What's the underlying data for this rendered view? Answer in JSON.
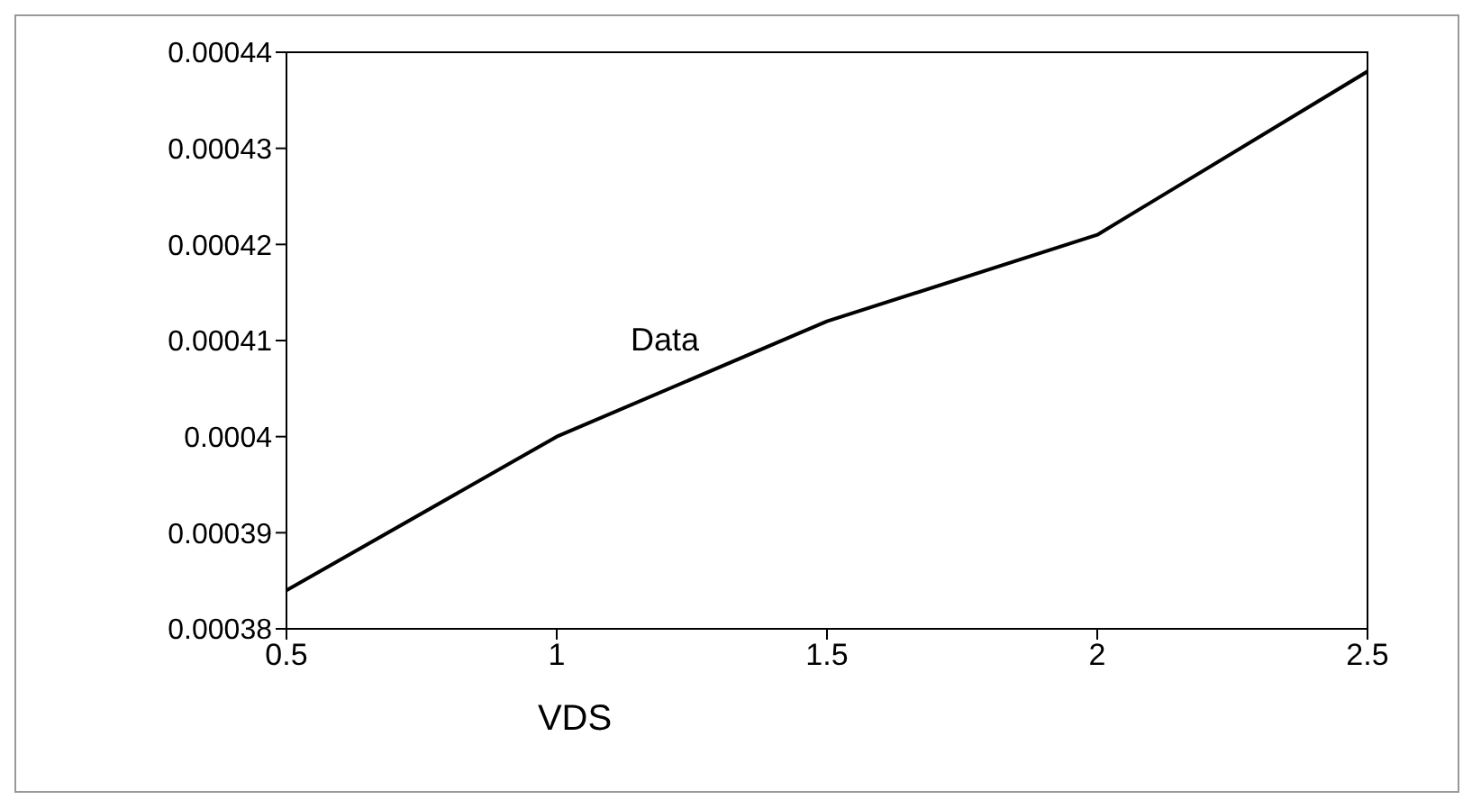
{
  "chart_data": {
    "type": "line",
    "xlabel": "VDS",
    "x": [
      0.5,
      1,
      1.5,
      2,
      2.5
    ],
    "series": [
      {
        "name": "Data",
        "color": "#000000",
        "values": [
          0.000384,
          0.0004,
          0.000412,
          0.000421,
          0.000438
        ]
      }
    ],
    "xlim": [
      0.5,
      2.5
    ],
    "xticks": [
      0.5,
      1,
      1.5,
      2,
      2.5
    ],
    "ylim": [
      0.00038,
      0.00044
    ],
    "yticks": [
      0.00038,
      0.00039,
      0.0004,
      0.00041,
      0.00042,
      0.00043,
      0.00044
    ],
    "grid": false,
    "legend": false,
    "marker": "none",
    "line_style": "solid"
  }
}
